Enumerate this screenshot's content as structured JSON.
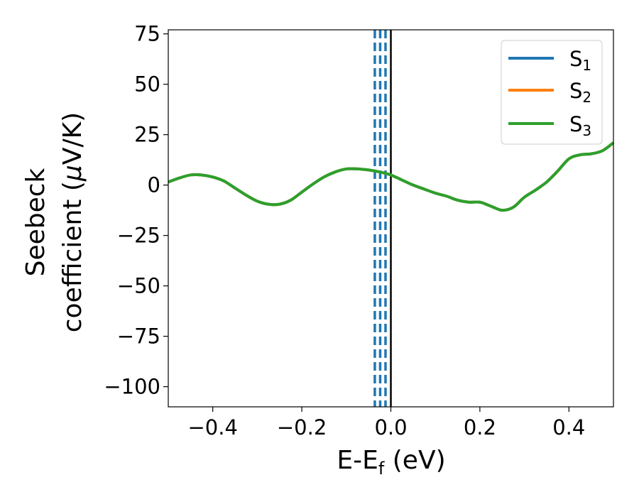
{
  "chart_data": {
    "type": "line",
    "xlabel": {
      "main": "E-E",
      "sub": "f",
      "tail": " (eV)"
    },
    "ylabel": {
      "line1": "Seebeck",
      "line2_pre": "coefficient  (",
      "line2_mu": "μ",
      "line2_post": "V/K)"
    },
    "xlim": [
      -0.5,
      0.5
    ],
    "ylim": [
      -110,
      77
    ],
    "xticks": [
      -0.4,
      -0.2,
      0.0,
      0.2,
      0.4
    ],
    "xtick_labels": [
      "−0.4",
      "−0.2",
      "0.0",
      "0.2",
      "0.4"
    ],
    "yticks": [
      75,
      50,
      25,
      0,
      -25,
      -50,
      -75,
      -100
    ],
    "ytick_labels": [
      "75",
      "50",
      "25",
      "0",
      "−25",
      "−50",
      "−75",
      "−100"
    ],
    "legend_position": "top-right",
    "series": [
      {
        "name": "S",
        "sub": "1",
        "color": "#1f77b4"
      },
      {
        "name": "S",
        "sub": "2",
        "color": "#ff7f0e"
      },
      {
        "name": "S",
        "sub": "3",
        "color": "#2ca02c"
      }
    ],
    "curve": {
      "x": [
        -0.5,
        -0.475,
        -0.45,
        -0.425,
        -0.4,
        -0.375,
        -0.35,
        -0.325,
        -0.3,
        -0.275,
        -0.25,
        -0.225,
        -0.2,
        -0.175,
        -0.15,
        -0.125,
        -0.1,
        -0.075,
        -0.05,
        -0.025,
        0.0,
        0.025,
        0.05,
        0.075,
        0.1,
        0.125,
        0.15,
        0.175,
        0.2,
        0.225,
        0.25,
        0.275,
        0.3,
        0.325,
        0.35,
        0.375,
        0.4,
        0.425,
        0.45,
        0.475,
        0.5
      ],
      "y": [
        1.5,
        3.5,
        5.0,
        5.0,
        4.0,
        2.0,
        -1.5,
        -5.0,
        -8.0,
        -9.5,
        -9.5,
        -7.5,
        -3.5,
        0.5,
        4.0,
        6.5,
        8.0,
        8.0,
        7.5,
        6.5,
        5.0,
        2.5,
        0.0,
        -2.0,
        -4.0,
        -5.5,
        -7.5,
        -8.5,
        -8.5,
        -10.5,
        -12.5,
        -11.0,
        -6.0,
        -2.5,
        1.5,
        7.0,
        13.0,
        15.0,
        15.5,
        17.0,
        21.0
      ]
    },
    "vertical_lines": [
      {
        "x": -0.036,
        "style": "dashed",
        "color": "#1f77b4"
      },
      {
        "x": -0.024,
        "style": "dashed",
        "color": "#1f77b4"
      },
      {
        "x": -0.012,
        "style": "dashed",
        "color": "#1f77b4"
      },
      {
        "x": 0.0,
        "style": "solid",
        "color": "#000000"
      }
    ]
  }
}
